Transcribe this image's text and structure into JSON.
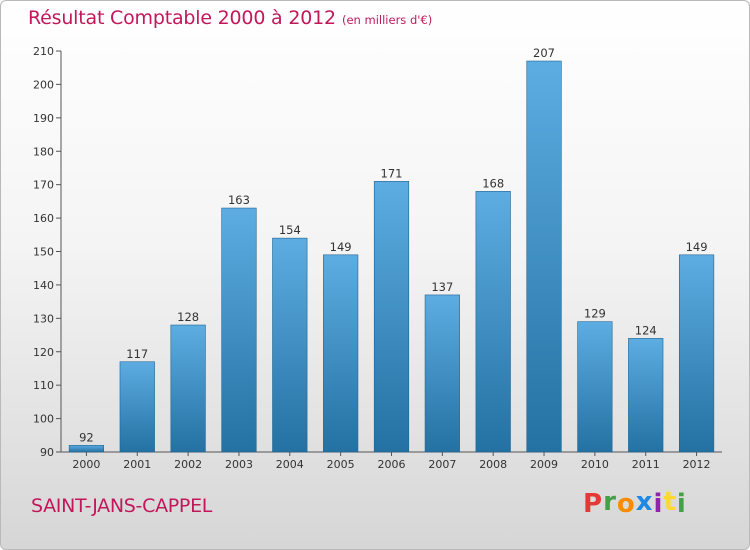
{
  "title": "Résultat Comptable 2000 à 2012",
  "unit_note": "(en milliers d'€)",
  "commune": "SAINT-JANS-CAPPEL",
  "logo": {
    "letters": [
      "P",
      "r",
      "o",
      "x",
      "i",
      "t",
      "i"
    ],
    "colors": [
      "#e53935",
      "#43a047",
      "#fb8c00",
      "#1e88e5",
      "#8e24aa",
      "#fdd835",
      "#43a047"
    ]
  },
  "colors": {
    "bar_top": "#5dade2",
    "bar_bottom": "#2471a3",
    "accent": "#c2185b"
  },
  "chart_data": {
    "type": "bar",
    "title": "Résultat Comptable 2000 à 2012",
    "subtitle": "(en milliers d'€)",
    "categories": [
      "2000",
      "2001",
      "2002",
      "2003",
      "2004",
      "2005",
      "2006",
      "2007",
      "2008",
      "2009",
      "2010",
      "2011",
      "2012"
    ],
    "values": [
      92,
      117,
      128,
      163,
      154,
      149,
      171,
      137,
      168,
      207,
      129,
      124,
      149
    ],
    "ylim": [
      90,
      210
    ],
    "yticks": [
      90,
      100,
      110,
      120,
      130,
      140,
      150,
      160,
      170,
      180,
      190,
      200,
      210
    ],
    "grid": false,
    "data_labels": true
  }
}
